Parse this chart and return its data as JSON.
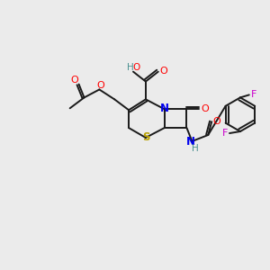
{
  "background_color": "#ebebeb",
  "bond_color": "#1a1a1a",
  "atom_colors": {
    "O": "#ff0000",
    "N": "#0000ee",
    "S": "#b8a000",
    "F": "#cc00cc",
    "HO": "#4a9090",
    "HN": "#4a9090",
    "C": "#1a1a1a"
  },
  "figsize": [
    3.0,
    3.0
  ],
  "dpi": 100
}
